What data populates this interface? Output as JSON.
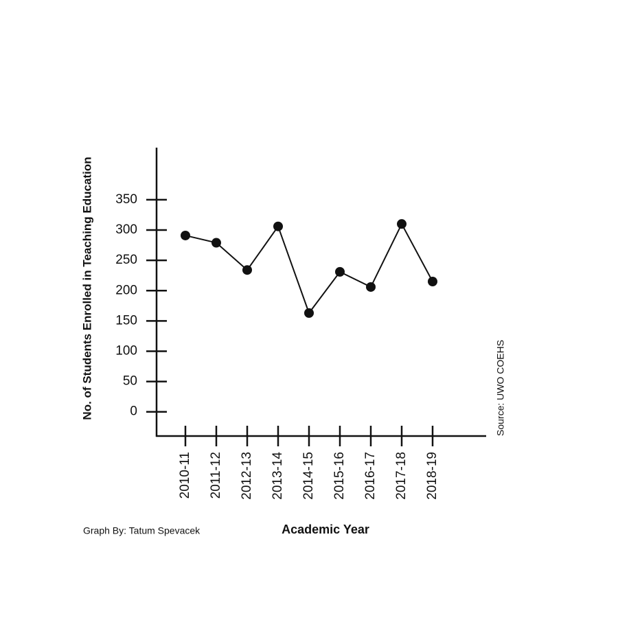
{
  "chart_data": {
    "type": "line",
    "y_axis_label": "No. of Students Enrolled in Teaching Education",
    "x_axis_label": "Academic Year",
    "credit": "Graph By: Tatum Spevacek",
    "source": "Source: UWO COEHS",
    "categories": [
      "2010-11",
      "2011-12",
      "2012-13",
      "2013-14",
      "2014-15",
      "2015-16",
      "2016-17",
      "2017-18",
      "2018-19"
    ],
    "values": [
      291,
      279,
      234,
      306,
      163,
      231,
      206,
      310,
      215
    ],
    "color": "#111111",
    "ylim": [
      -40,
      436
    ],
    "yticks": [
      0,
      50,
      100,
      150,
      200,
      250,
      300,
      350
    ]
  }
}
